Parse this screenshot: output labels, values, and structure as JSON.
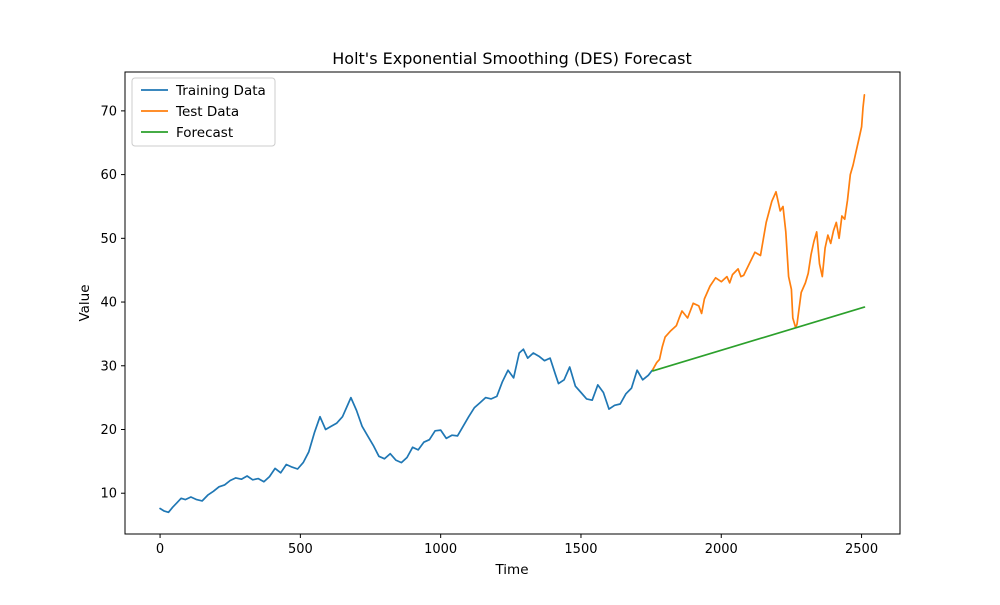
{
  "chart_data": {
    "type": "line",
    "title": "Holt's Exponential Smoothing (DES) Forecast",
    "xlabel": "Time",
    "ylabel": "Value",
    "xlim": [
      -125,
      2637
    ],
    "ylim": [
      3.6,
      76.1
    ],
    "xticks": [
      0,
      500,
      1000,
      1500,
      2000,
      2500
    ],
    "yticks": [
      10,
      20,
      30,
      40,
      50,
      60,
      70
    ],
    "grid": false,
    "legend_position": "top-left",
    "series": [
      {
        "name": "Training Data",
        "color": "#1f77b4",
        "x": [
          0,
          15,
          30,
          45,
          60,
          75,
          90,
          110,
          130,
          150,
          170,
          190,
          210,
          230,
          250,
          270,
          290,
          310,
          330,
          350,
          370,
          390,
          410,
          430,
          450,
          470,
          490,
          510,
          530,
          550,
          570,
          590,
          610,
          630,
          650,
          670,
          680,
          700,
          720,
          740,
          760,
          780,
          800,
          820,
          840,
          860,
          880,
          900,
          920,
          940,
          960,
          980,
          1000,
          1020,
          1040,
          1060,
          1080,
          1100,
          1120,
          1140,
          1160,
          1180,
          1200,
          1220,
          1240,
          1260,
          1280,
          1295,
          1310,
          1330,
          1350,
          1370,
          1390,
          1410,
          1420,
          1440,
          1460,
          1480,
          1500,
          1520,
          1540,
          1560,
          1580,
          1600,
          1620,
          1640,
          1660,
          1680,
          1700,
          1720,
          1740,
          1756
        ],
        "y": [
          7.6,
          7.2,
          7.0,
          7.8,
          8.5,
          9.2,
          9.0,
          9.4,
          9.0,
          8.8,
          9.7,
          10.3,
          11.0,
          11.3,
          12.0,
          12.4,
          12.2,
          12.7,
          12.1,
          12.3,
          11.8,
          12.6,
          13.9,
          13.2,
          14.5,
          14.1,
          13.8,
          14.8,
          16.5,
          19.5,
          22.0,
          20.0,
          20.5,
          21.0,
          22.0,
          24.0,
          25.0,
          23.0,
          20.5,
          19.0,
          17.5,
          15.8,
          15.4,
          16.2,
          15.2,
          14.8,
          15.6,
          17.2,
          16.8,
          18.0,
          18.4,
          19.8,
          19.9,
          18.6,
          19.1,
          19.0,
          20.5,
          22.0,
          23.4,
          24.2,
          25.0,
          24.8,
          25.2,
          27.5,
          29.3,
          28.1,
          32.0,
          32.6,
          31.2,
          32.0,
          31.5,
          30.8,
          31.2,
          28.5,
          27.2,
          27.8,
          29.8,
          26.8,
          25.8,
          24.8,
          24.6,
          27.0,
          25.8,
          23.2,
          23.8,
          24.0,
          25.6,
          26.5,
          29.3,
          27.8,
          28.5,
          29.4
        ]
      },
      {
        "name": "Test Data",
        "color": "#ff7f0e",
        "x": [
          1756,
          1770,
          1780,
          1790,
          1800,
          1820,
          1840,
          1850,
          1860,
          1880,
          1900,
          1920,
          1930,
          1940,
          1960,
          1980,
          2000,
          2020,
          2030,
          2040,
          2060,
          2070,
          2080,
          2100,
          2120,
          2140,
          2160,
          2180,
          2195,
          2210,
          2220,
          2230,
          2240,
          2250,
          2255,
          2265,
          2270,
          2285,
          2300,
          2310,
          2320,
          2330,
          2340,
          2350,
          2360,
          2370,
          2380,
          2390,
          2400,
          2410,
          2420,
          2430,
          2440,
          2450,
          2460,
          2470,
          2480,
          2490,
          2500,
          2505,
          2510
        ],
        "y": [
          29.4,
          30.5,
          31.0,
          33.0,
          34.5,
          35.5,
          36.3,
          37.5,
          38.6,
          37.5,
          39.8,
          39.4,
          38.2,
          40.5,
          42.5,
          43.8,
          43.2,
          44.0,
          43.0,
          44.3,
          45.2,
          44.0,
          44.2,
          46.0,
          47.8,
          47.3,
          52.5,
          55.8,
          57.3,
          54.3,
          55.0,
          51.0,
          44.0,
          42.0,
          37.5,
          36.0,
          36.5,
          41.5,
          43.0,
          44.5,
          47.5,
          49.5,
          51.0,
          46.0,
          44.0,
          48.5,
          50.5,
          49.2,
          51.2,
          52.5,
          50.0,
          53.5,
          53.0,
          56.0,
          60.0,
          61.5,
          63.5,
          65.5,
          67.5,
          70.5,
          72.5
        ]
      },
      {
        "name": "Forecast",
        "color": "#2ca02c",
        "x": [
          1756,
          2510
        ],
        "y": [
          29.2,
          39.2
        ]
      }
    ]
  }
}
